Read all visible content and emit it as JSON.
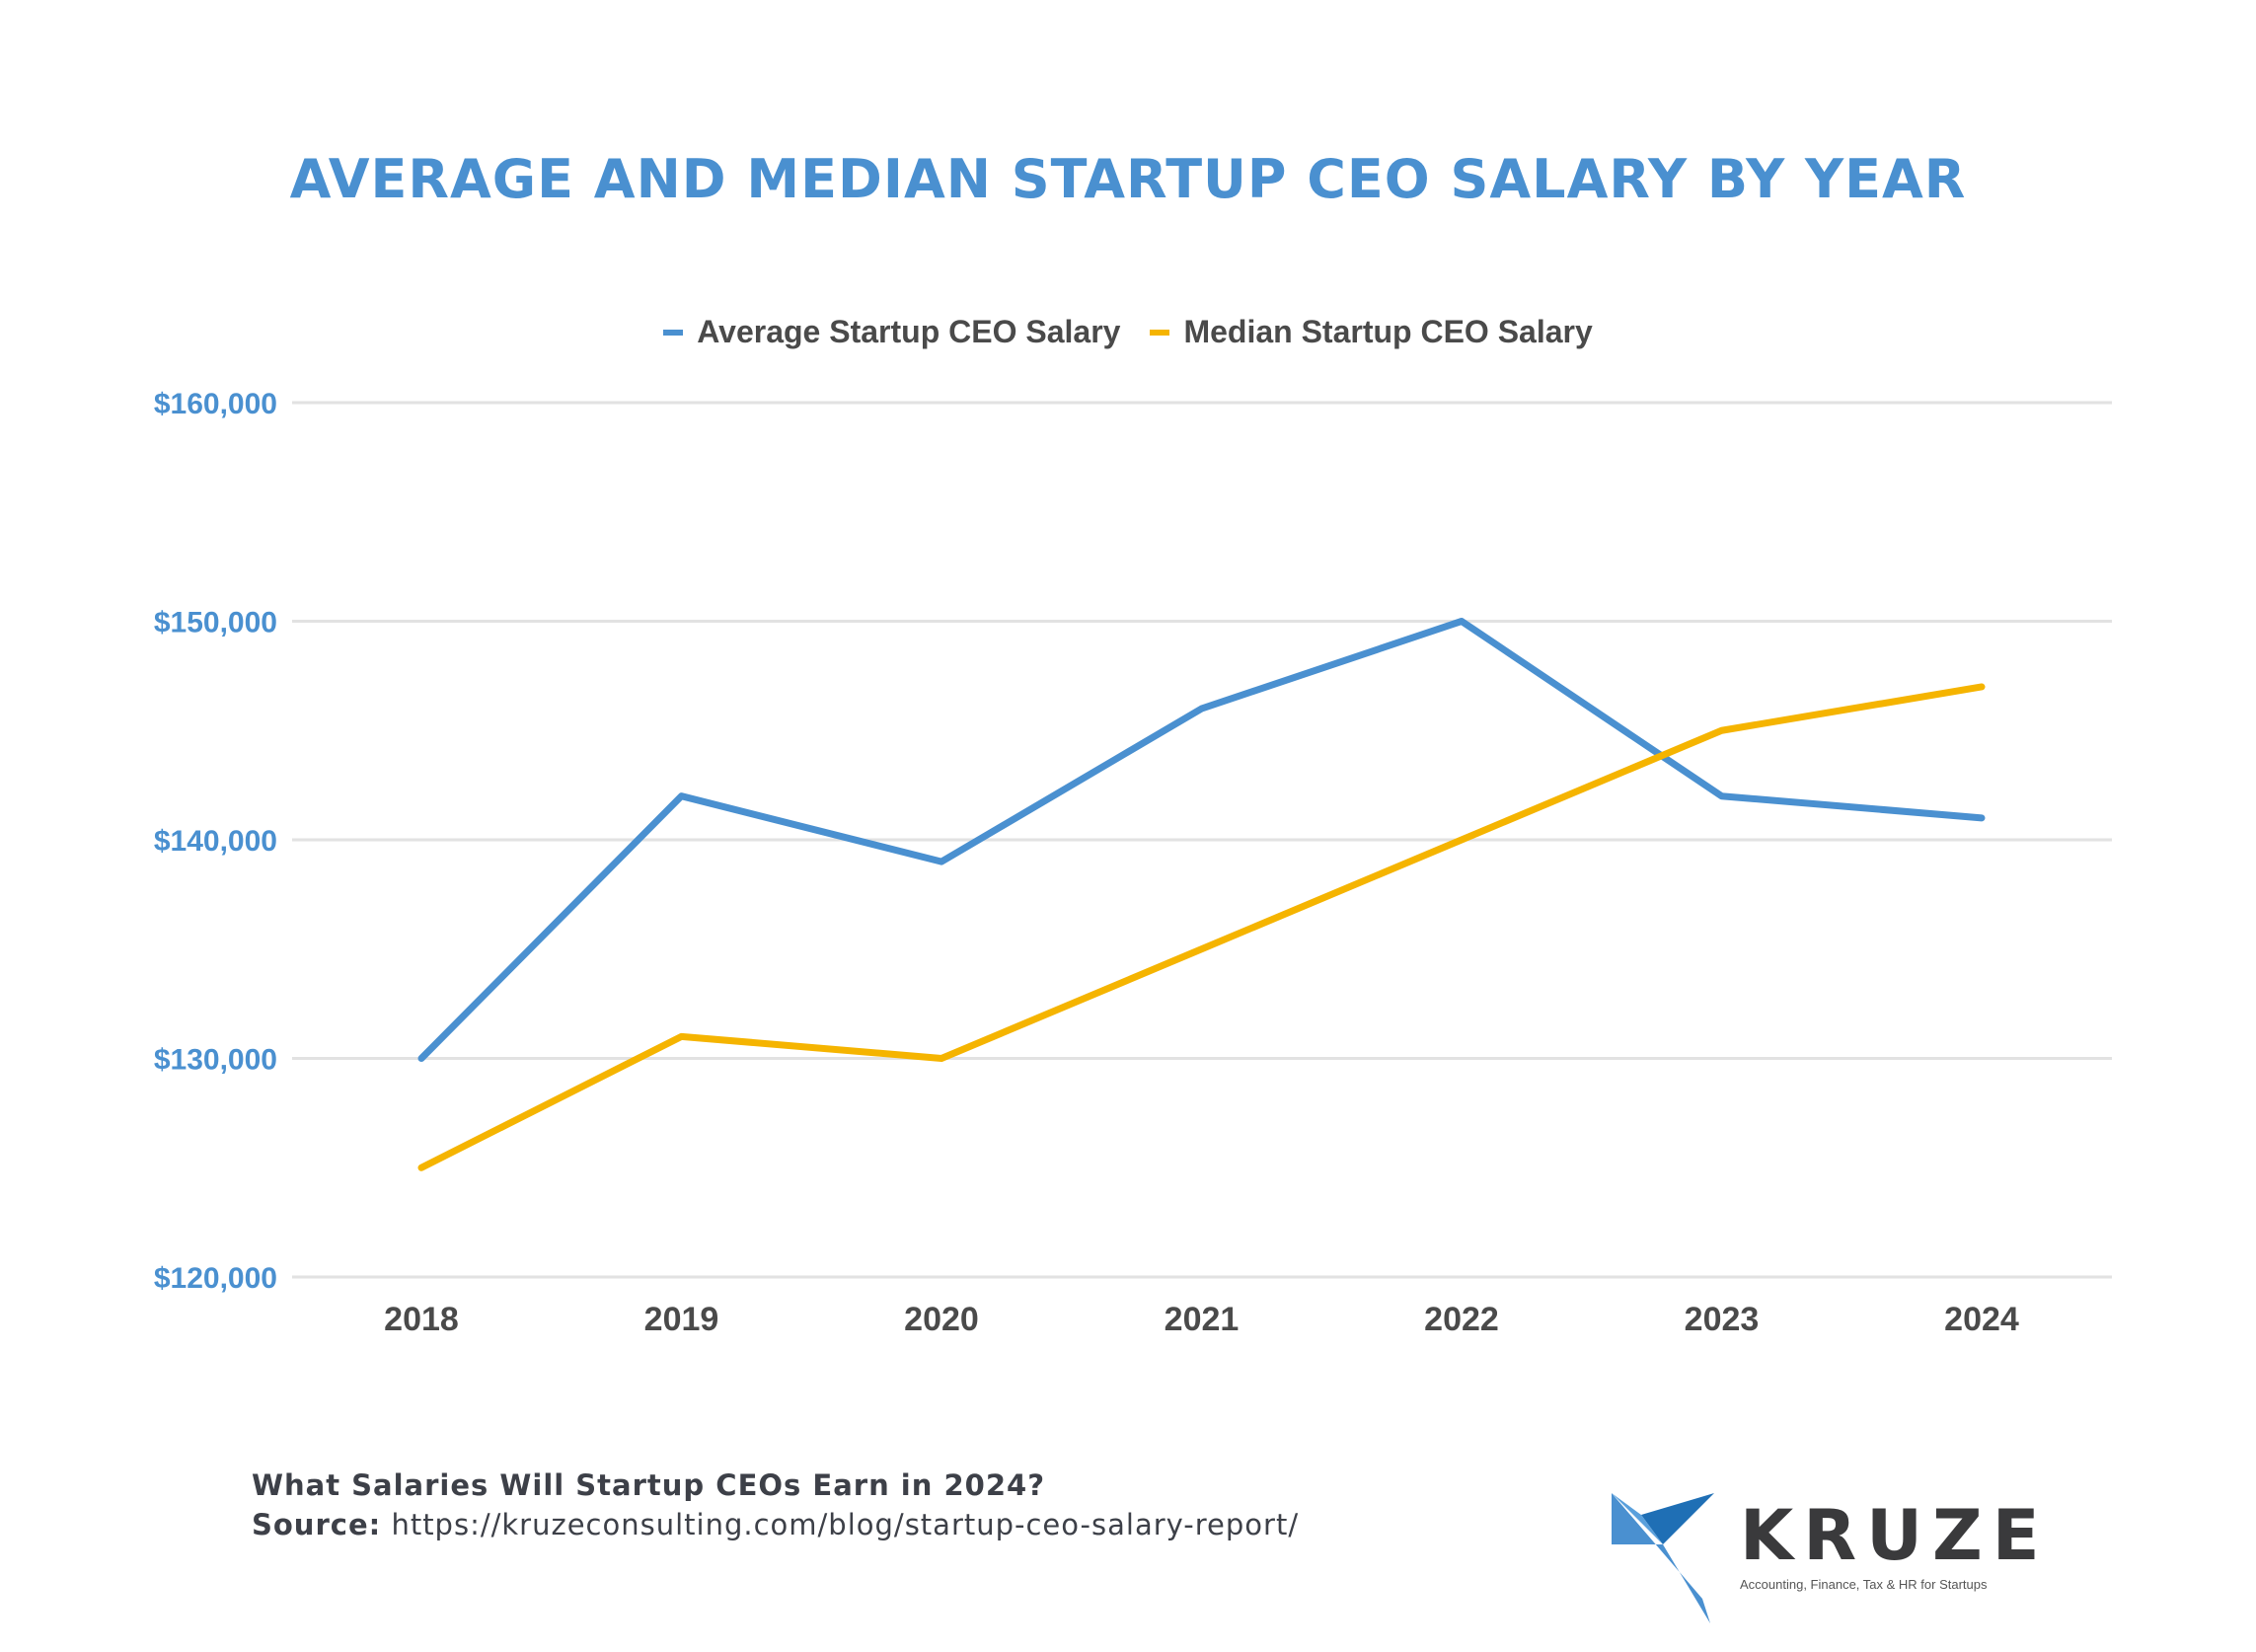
{
  "chart_data": {
    "type": "line",
    "title": "AVERAGE AND MEDIAN STARTUP CEO SALARY BY YEAR",
    "xlabel": "",
    "ylabel": "",
    "categories": [
      "2018",
      "2019",
      "2020",
      "2021",
      "2022",
      "2023",
      "2024"
    ],
    "series": [
      {
        "name": "Average Startup CEO Salary",
        "color": "#4a90d0",
        "values": [
          130000,
          142000,
          139000,
          146000,
          150000,
          142000,
          141000
        ]
      },
      {
        "name": "Median Startup CEO Salary",
        "color": "#f5b400",
        "values": [
          125000,
          131000,
          130000,
          135000,
          140000,
          145000,
          147000
        ]
      }
    ],
    "ylim": [
      120000,
      160000
    ],
    "yticks": [
      120000,
      130000,
      140000,
      150000,
      160000
    ],
    "ytick_labels": [
      "$120,000",
      "$130,000",
      "$140,000",
      "$150,000",
      "$160,000"
    ],
    "grid": true,
    "legend_position": "top-center"
  },
  "footer": {
    "heading": "What Salaries Will Startup CEOs Earn in 2024?",
    "source_label": "Source:",
    "source_url": "https://kruzeconsulting.com/blog/startup-ceo-salary-report/"
  },
  "logo": {
    "name": "KRUZE",
    "tagline": "Accounting, Finance, Tax & HR for Startups",
    "colors": {
      "light": "#4a90d0",
      "dark": "#1f6fb5",
      "text": "#3a3a3c"
    }
  },
  "colors": {
    "title": "#4a90d0",
    "grid": "#e2e2e2",
    "axis_text": "#4a4a4a"
  }
}
